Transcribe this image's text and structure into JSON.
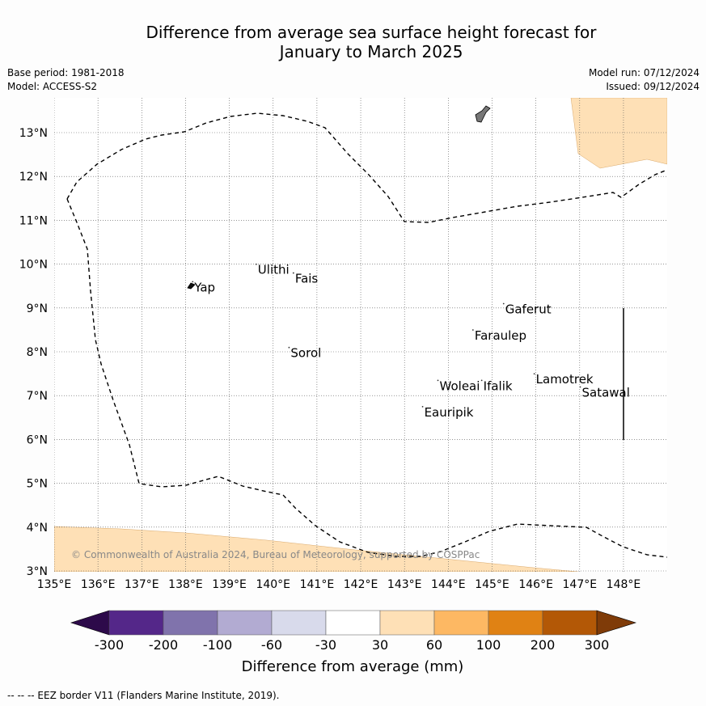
{
  "title": {
    "line1": "Difference from average sea surface height forecast for",
    "line2": "January to March 2025"
  },
  "meta": {
    "base_period": "Base period: 1981-2018",
    "model": "Model: ACCESS-S2",
    "model_run": "Model run: 07/12/2024",
    "issued": "Issued: 09/12/2024"
  },
  "map": {
    "lon_range": [
      135,
      149
    ],
    "lat_range": [
      3,
      13.8
    ],
    "lon_ticks": [
      "135°E",
      "136°E",
      "137°E",
      "138°E",
      "139°E",
      "140°E",
      "141°E",
      "142°E",
      "143°E",
      "144°E",
      "145°E",
      "146°E",
      "147°E",
      "148°E"
    ],
    "lat_ticks": [
      "3°N",
      "4°N",
      "5°N",
      "6°N",
      "7°N",
      "8°N",
      "9°N",
      "10°N",
      "11°N",
      "12°N",
      "13°N"
    ],
    "grid": true,
    "places": [
      {
        "name": "Yap",
        "lon": 138.2,
        "lat": 9.45
      },
      {
        "name": "Ulithi",
        "lon": 139.65,
        "lat": 9.85
      },
      {
        "name": "Fais",
        "lon": 140.5,
        "lat": 9.65
      },
      {
        "name": "Gaferut",
        "lon": 145.3,
        "lat": 8.95
      },
      {
        "name": "Faraulep",
        "lon": 144.6,
        "lat": 8.35
      },
      {
        "name": "Sorol",
        "lon": 140.4,
        "lat": 7.95
      },
      {
        "name": "Woleai",
        "lon": 143.8,
        "lat": 7.2
      },
      {
        "name": "Ifalik",
        "lon": 144.8,
        "lat": 7.2
      },
      {
        "name": "Lamotrek",
        "lon": 146.0,
        "lat": 7.35
      },
      {
        "name": "Satawal",
        "lon": 147.05,
        "lat": 7.05
      },
      {
        "name": "Eauripik",
        "lon": 143.45,
        "lat": 6.6
      }
    ],
    "copyright": "© Commonwealth of Australia 2024, Bureau of Meteorology, supported by COSPPac",
    "eez_line_style": "dashed"
  },
  "colorbar": {
    "title": "Difference from average (mm)",
    "labels": [
      "-300",
      "-200",
      "-100",
      "-60",
      "-30",
      "30",
      "60",
      "100",
      "200",
      "300"
    ],
    "colors": {
      "below_min": "#2d0a4a",
      "bins": [
        "#542789",
        "#8073ac",
        "#b2abd2",
        "#d8daeb",
        "#ffffff",
        "#fee0b6",
        "#fdb863",
        "#e08214",
        "#b35806"
      ],
      "above_max": "#7f3b08"
    }
  },
  "footnote": "--  --  -- EEZ border V11 (Flanders Marine Institute, 2019)."
}
